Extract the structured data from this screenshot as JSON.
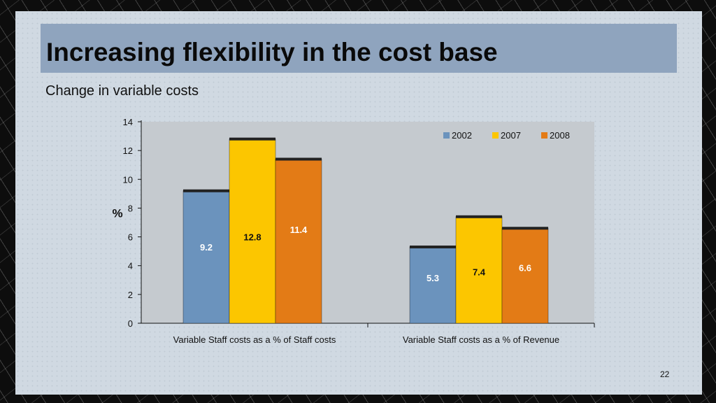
{
  "slide": {
    "title": "Increasing flexibility in the cost base",
    "subtitle": "Change in variable costs",
    "page_number": "22"
  },
  "colors": {
    "2002": "#6b93bd",
    "2007": "#fcc600",
    "2008": "#e37b16",
    "plot_bg": "#c5cacf",
    "title_bar": "#8fa4be"
  },
  "chart_data": {
    "type": "bar",
    "categories": [
      "Variable Staff costs as a % of Staff costs",
      "Variable Staff costs as a % of Revenue"
    ],
    "series": [
      {
        "name": "2002",
        "values": [
          9.2,
          5.3
        ]
      },
      {
        "name": "2007",
        "values": [
          12.8,
          7.4
        ]
      },
      {
        "name": "2008",
        "values": [
          11.4,
          6.6
        ]
      }
    ],
    "data_labels": [
      [
        "9.2",
        "5.3"
      ],
      [
        "12.8",
        "7.4"
      ],
      [
        "11.4",
        "6.6"
      ]
    ],
    "title": "",
    "xlabel": "",
    "ylabel": "%",
    "ylim": [
      0,
      14
    ],
    "yticks": [
      0,
      2,
      4,
      6,
      8,
      10,
      12,
      14
    ],
    "grid": false,
    "legend": "top-right"
  }
}
